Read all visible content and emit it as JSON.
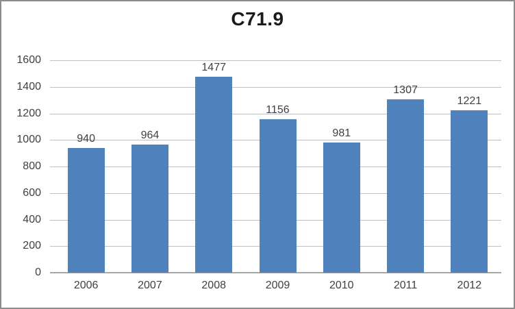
{
  "chart_data": {
    "type": "bar",
    "title": "C71.9",
    "categories": [
      "2006",
      "2007",
      "2008",
      "2009",
      "2010",
      "2011",
      "2012"
    ],
    "values": [
      940,
      964,
      1477,
      1156,
      981,
      1307,
      1221
    ],
    "xlabel": "",
    "ylabel": "",
    "ylim": [
      0,
      1600
    ],
    "yticks": [
      0,
      200,
      400,
      600,
      800,
      1000,
      1200,
      1400,
      1600
    ],
    "grid": true,
    "legend_position": "none",
    "data_labels": true,
    "bar_color": "#4f81bd",
    "gridline_color": "#bfbfbf",
    "axis_color": "#a6a6a6",
    "text_color": "#3f3f3f",
    "title_color": "#1a1a1a",
    "frame_border_color": "#8c8c8c"
  }
}
